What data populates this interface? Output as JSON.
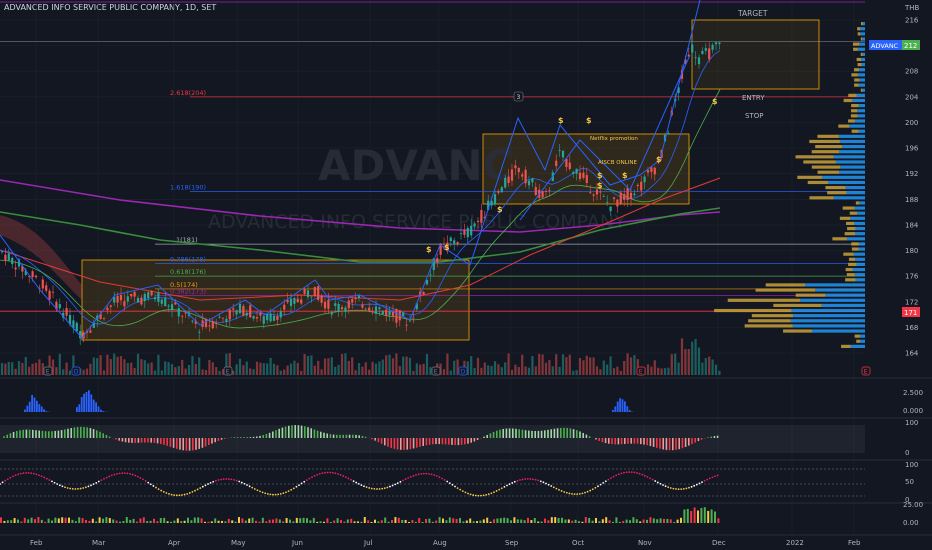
{
  "header": {
    "title": "ADVANCED INFO SERVICE PUBLIC COMPANY, 1D, SET"
  },
  "currency": "THB",
  "watermark": {
    "symbol": "ADVANC",
    "name": "ADVANCED INFO SERVICE PUBLIC COMPANY"
  },
  "price_axis": {
    "ticks": [
      "216",
      "212",
      "208",
      "204",
      "200",
      "196",
      "192",
      "188",
      "184",
      "180",
      "176",
      "172",
      "168",
      "164"
    ],
    "symbol_tag": "ADVANC",
    "last_price": "212",
    "level_tag": "171"
  },
  "time_axis": {
    "labels": [
      "Feb",
      "Mar",
      "Apr",
      "May",
      "Jun",
      "Jul",
      "Aug",
      "Sep",
      "Oct",
      "Nov",
      "Dec",
      "2022",
      "Feb"
    ]
  },
  "fib_levels": [
    {
      "label": "2.618(204)",
      "color": "#f23645"
    },
    {
      "label": "1.618(190)",
      "color": "#2962ff"
    },
    {
      "label": "1(181)",
      "color": "#b2b5be"
    },
    {
      "label": "0.786(178)",
      "color": "#2962ff"
    },
    {
      "label": "0.618(176)",
      "color": "#4caf50"
    },
    {
      "label": "0.5(174)",
      "color": "#ff9800"
    },
    {
      "label": "0.382(173)",
      "color": "#9c27b0"
    }
  ],
  "annotations": {
    "target": "TARGET",
    "entry": "ENTRY",
    "stop": "STOP",
    "netflix": "Netflix promotion",
    "aiscb": "AISCB ONLINE",
    "wave_label": "3"
  },
  "event_markers": {
    "earnings": "E",
    "dividend": "D"
  },
  "indicator_axes": {
    "volume": [
      "2.500",
      "0.000"
    ],
    "osc1": [
      "100",
      "0"
    ],
    "osc2": [
      "100",
      "50",
      "0"
    ],
    "osc3": [
      "25.00",
      "0.00"
    ]
  },
  "colors": {
    "bg": "#131722",
    "up": "#26a69a",
    "down": "#ef5350",
    "grid": "#1e222d",
    "box": "#f7a600",
    "dividend": "#f7c948"
  }
}
